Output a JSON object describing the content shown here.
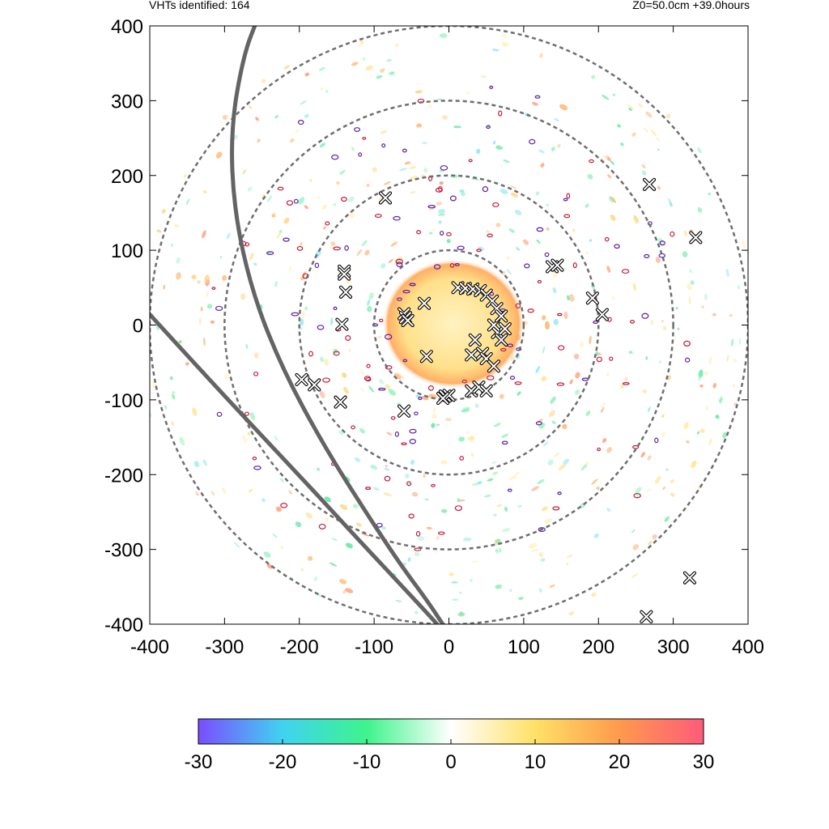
{
  "header": {
    "left_text": "VHTs identified: 164",
    "right_text": "Z0=50.0cm  +39.0hours"
  },
  "chart_data": {
    "type": "scatter",
    "title": "",
    "xlabel": "",
    "ylabel": "",
    "xlim": [
      -400,
      400
    ],
    "ylim": [
      -400,
      400
    ],
    "xticks": [
      "-400",
      "-300",
      "-200",
      "-100",
      "0",
      "100",
      "200",
      "300",
      "400"
    ],
    "yticks": [
      "400",
      "300",
      "200",
      "100",
      "0",
      "-100",
      "-200",
      "-300",
      "-400"
    ],
    "grid": false,
    "range_rings": [
      100,
      200,
      300,
      400
    ],
    "tracks": [
      {
        "name": "",
        "points": [
          [
            -410,
            25
          ],
          [
            -300,
            -95
          ],
          [
            -190,
            -212
          ],
          [
            -120,
            -288
          ],
          [
            -60,
            -352
          ],
          [
            -20,
            -395
          ],
          [
            -12,
            -405
          ]
        ]
      },
      {
        "name": "",
        "points": [
          [
            -255,
            412
          ],
          [
            -275,
            360
          ],
          [
            -292,
            260
          ],
          [
            -287,
            150
          ],
          [
            -262,
            40
          ],
          [
            -222,
            -60
          ],
          [
            -168,
            -160
          ],
          [
            -110,
            -252
          ],
          [
            -65,
            -320
          ],
          [
            -28,
            -370
          ],
          [
            -5,
            -405
          ]
        ]
      }
    ],
    "series": [
      {
        "name": "",
        "marker": "x",
        "points": [
          [
            -85,
            170
          ],
          [
            -140,
            72
          ],
          [
            -140,
            68
          ],
          [
            -138,
            44
          ],
          [
            -143,
            1
          ],
          [
            -60,
            15
          ],
          [
            -58,
            10
          ],
          [
            -33,
            29
          ],
          [
            -55,
            6
          ],
          [
            -30,
            -42
          ],
          [
            -5,
            -95
          ],
          [
            0,
            -94
          ],
          [
            -8,
            -98
          ],
          [
            -145,
            -103
          ],
          [
            -180,
            -80
          ],
          [
            -197,
            -73
          ],
          [
            -60,
            -115
          ],
          [
            30,
            -88
          ],
          [
            40,
            -83
          ],
          [
            50,
            -88
          ],
          [
            35,
            -20
          ],
          [
            30,
            -40
          ],
          [
            45,
            -38
          ],
          [
            50,
            -45
          ],
          [
            60,
            -55
          ],
          [
            65,
            -10
          ],
          [
            70,
            -20
          ],
          [
            75,
            -5
          ],
          [
            60,
            0
          ],
          [
            12,
            50
          ],
          [
            22,
            49
          ],
          [
            32,
            48
          ],
          [
            42,
            46
          ],
          [
            50,
            40
          ],
          [
            58,
            32
          ],
          [
            64,
            22
          ],
          [
            70,
            12
          ],
          [
            138,
            78
          ],
          [
            145,
            80
          ],
          [
            192,
            36
          ],
          [
            205,
            14
          ],
          [
            268,
            188
          ],
          [
            330,
            117
          ],
          [
            322,
            -338
          ],
          [
            264,
            -390
          ]
        ]
      }
    ],
    "colorbar": {
      "min": -30,
      "max": 30,
      "ticks": [
        "-30",
        "-20",
        "-10",
        "0",
        "10",
        "20",
        "30"
      ],
      "colors": [
        "#7b4dff",
        "#3fd3f0",
        "#3ef48c",
        "#ffffff",
        "#ffe166",
        "#ff9a4d",
        "#ff5b7a"
      ]
    }
  }
}
